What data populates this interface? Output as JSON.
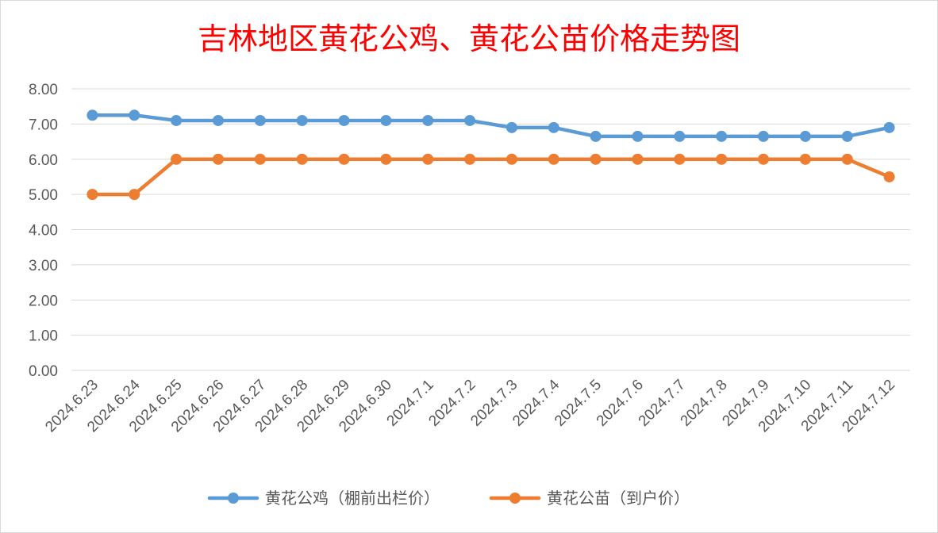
{
  "chart_data": {
    "type": "line",
    "title": "吉林地区黄花公鸡、黄花公苗价格走势图",
    "xlabel": "",
    "ylabel": "",
    "categories": [
      "2024.6.23",
      "2024.6.24",
      "2024.6.25",
      "2024.6.26",
      "2024.6.27",
      "2024.6.28",
      "2024.6.29",
      "2024.6.30",
      "2024.7.1",
      "2024.7.2",
      "2024.7.3",
      "2024.7.4",
      "2024.7.5",
      "2024.7.6",
      "2024.7.7",
      "2024.7.8",
      "2024.7.9",
      "2024.7.10",
      "2024.7.11",
      "2024.7.12"
    ],
    "ylim": [
      0,
      8
    ],
    "yticks": [
      "0.00",
      "1.00",
      "2.00",
      "3.00",
      "4.00",
      "5.00",
      "6.00",
      "7.00",
      "8.00"
    ],
    "grid": true,
    "legend_position": "bottom",
    "series": [
      {
        "name": "黄花公鸡（棚前出栏价）",
        "color": "#5b9bd5",
        "values": [
          7.25,
          7.25,
          7.1,
          7.1,
          7.1,
          7.1,
          7.1,
          7.1,
          7.1,
          7.1,
          6.9,
          6.9,
          6.65,
          6.65,
          6.65,
          6.65,
          6.65,
          6.65,
          6.65,
          6.9
        ]
      },
      {
        "name": "黄花公苗（到户价）",
        "color": "#ed7d31",
        "values": [
          5,
          5,
          6,
          6,
          6,
          6,
          6,
          6,
          6,
          6,
          6,
          6,
          6,
          6,
          6,
          6,
          6,
          6,
          6,
          5.5
        ]
      }
    ]
  }
}
